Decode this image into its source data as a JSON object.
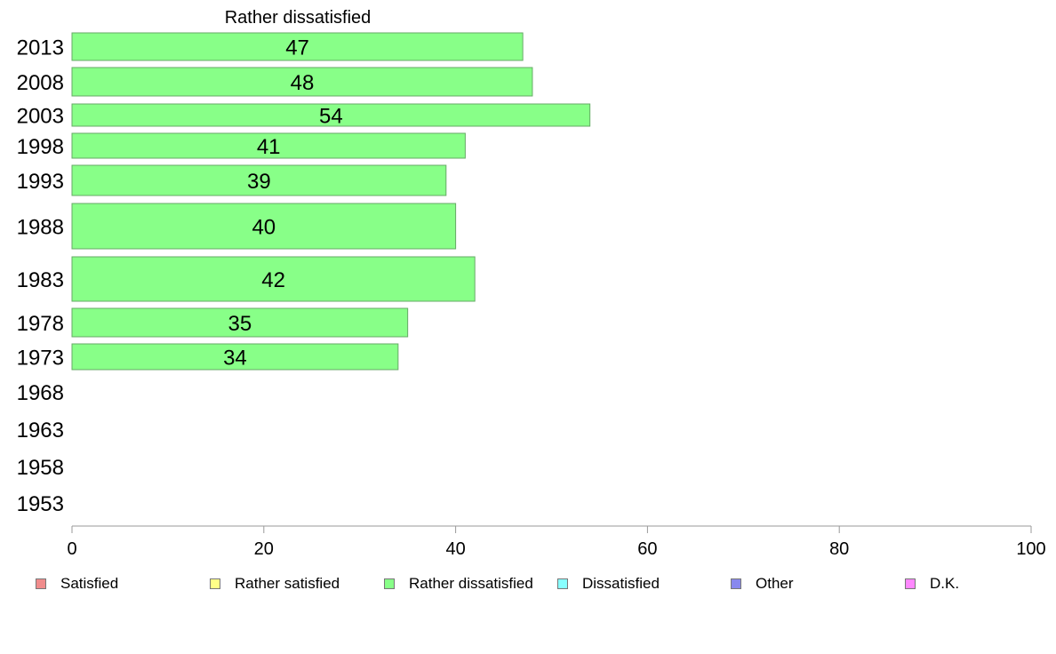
{
  "chart_data": {
    "type": "bar",
    "orientation": "horizontal",
    "title": "Rather dissatisfied",
    "categories": [
      "2013",
      "2008",
      "2003",
      "1998",
      "1993",
      "1988",
      "1983",
      "1978",
      "1973",
      "1968",
      "1963",
      "1958",
      "1953"
    ],
    "series": [
      {
        "name": "Rather dissatisfied",
        "values": [
          47,
          48,
          54,
          41,
          39,
          40,
          42,
          35,
          34,
          null,
          null,
          null,
          null
        ]
      }
    ],
    "value_labels": [
      "47",
      "48",
      "54",
      "41",
      "39",
      "40",
      "42",
      "35",
      "34",
      "",
      "",
      "",
      ""
    ],
    "xlim": [
      0,
      100
    ],
    "x_ticks": [
      "0",
      "20",
      "40",
      "60",
      "80",
      "100"
    ],
    "grid": false,
    "bar_color": "#88ff88",
    "bar_stroke": "#66aa66",
    "legend": {
      "placement": "bottom",
      "items": [
        {
          "label": "Satisfied",
          "color": "#f08c8c"
        },
        {
          "label": "Rather satisfied",
          "color": "#ffff88"
        },
        {
          "label": "Rather dissatisfied",
          "color": "#88ff88"
        },
        {
          "label": "Dissatisfied",
          "color": "#88ffff"
        },
        {
          "label": "Other",
          "color": "#8888ee"
        },
        {
          "label": "D.K.",
          "color": "#ff88ff"
        }
      ]
    }
  }
}
